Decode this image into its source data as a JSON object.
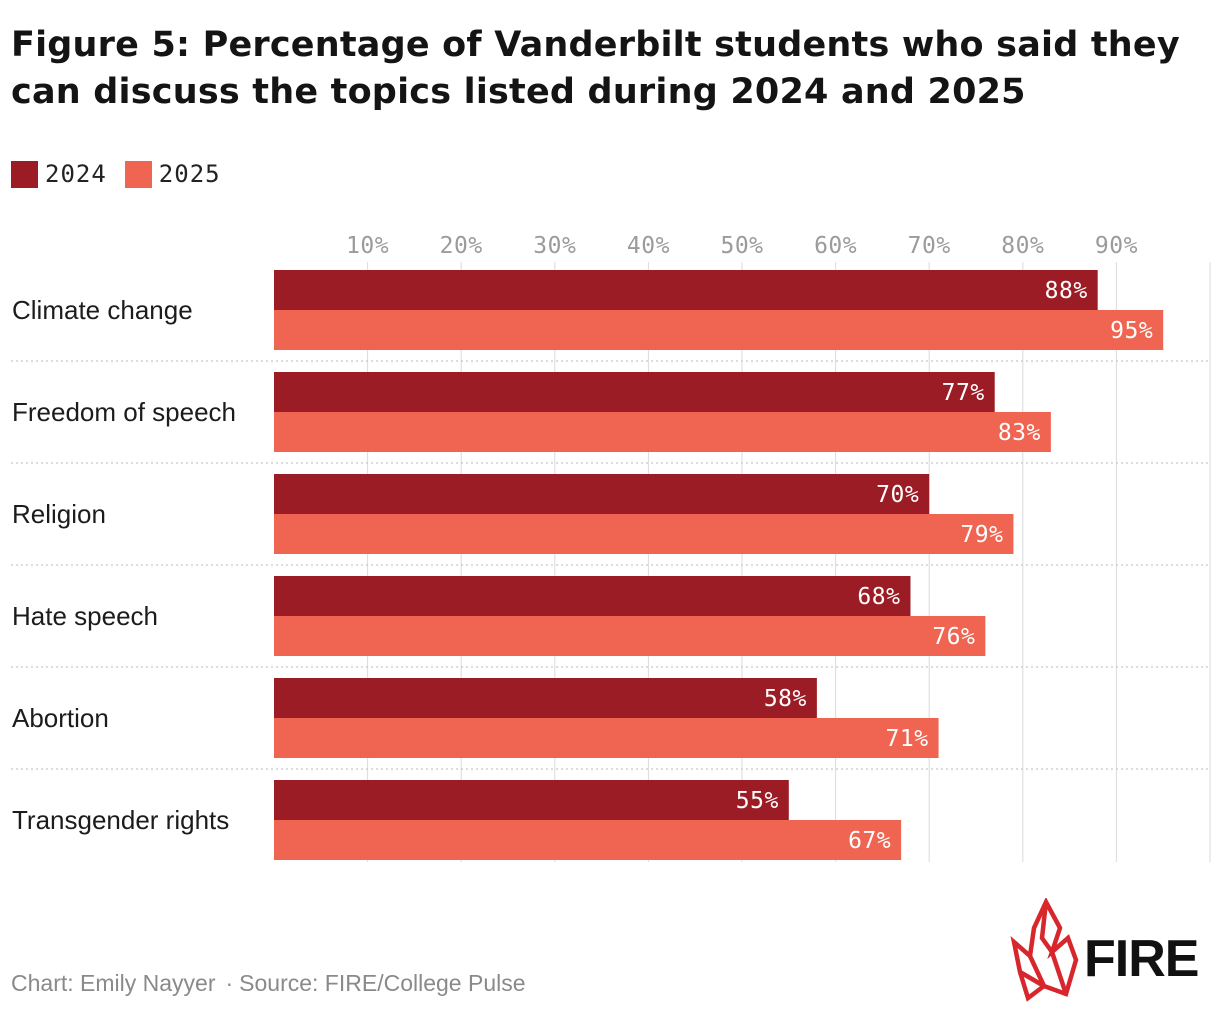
{
  "header": {
    "title_line1": "Figure 5: Percentage of Vanderbilt students who said they",
    "title_line2": "can discuss the topics listed during 2024 and 2025"
  },
  "legend": [
    {
      "label": "2024",
      "color": "#9c1c25"
    },
    {
      "label": "2025",
      "color": "#f06551"
    }
  ],
  "footer": {
    "credit": "Chart: Emily Nayyer",
    "separator": "·",
    "source": "Source: FIRE/College Pulse"
  },
  "logo": {
    "text": "FIRE",
    "color": "#d8262d"
  },
  "chart_data": {
    "type": "bar",
    "orientation": "horizontal",
    "title": "Figure 5: Percentage of Vanderbilt students who said they can discuss the topics listed during 2024 and 2025",
    "categories": [
      "Climate change",
      "Freedom of speech",
      "Religion",
      "Hate speech",
      "Abortion",
      "Transgender rights"
    ],
    "series": [
      {
        "name": "2024",
        "color": "#9c1c25",
        "values": [
          88,
          77,
          70,
          68,
          58,
          55
        ]
      },
      {
        "name": "2025",
        "color": "#f06551",
        "values": [
          95,
          83,
          79,
          76,
          71,
          67
        ]
      }
    ],
    "value_suffix": "%",
    "xlim": [
      0,
      100
    ],
    "xticks": [
      10,
      20,
      30,
      40,
      50,
      60,
      70,
      80,
      90
    ],
    "xtick_labels": [
      "10%",
      "20%",
      "30%",
      "40%",
      "50%",
      "60%",
      "70%",
      "80%",
      "90%"
    ],
    "grid": true,
    "legend_position": "top-left",
    "xlabel": "",
    "ylabel": ""
  }
}
